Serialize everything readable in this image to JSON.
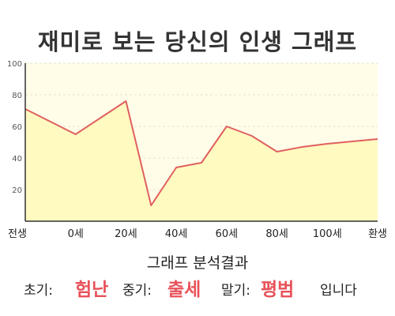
{
  "chart_data": {
    "type": "area",
    "title": "재미로 보는 당신의 인생 그래프",
    "xlabel": "",
    "ylabel": "",
    "ylim": [
      0,
      100
    ],
    "yticks": [
      "100",
      "80",
      "60",
      "40",
      "20"
    ],
    "categories": [
      "전생",
      "0세",
      "20세",
      "40세",
      "60세",
      "80세",
      "100세",
      "환생"
    ],
    "x": [
      -20,
      0,
      20,
      30,
      40,
      50,
      60,
      70,
      80,
      90,
      100,
      120
    ],
    "values": [
      71,
      55,
      76,
      10,
      34,
      37,
      60,
      54,
      44,
      47,
      49,
      52
    ],
    "grid": true,
    "line_color": "#e06060",
    "fill_color": "#fffac0",
    "background_color": "#fffde8"
  },
  "analysis": {
    "title": "그래프 분석결과",
    "early_label": "초기:",
    "early_value": "험난",
    "middle_label": "중기:",
    "middle_value": "출세",
    "late_label": "말기:",
    "late_value": "평범",
    "ending": "입니다",
    "highlight_color": "#e8525a"
  }
}
